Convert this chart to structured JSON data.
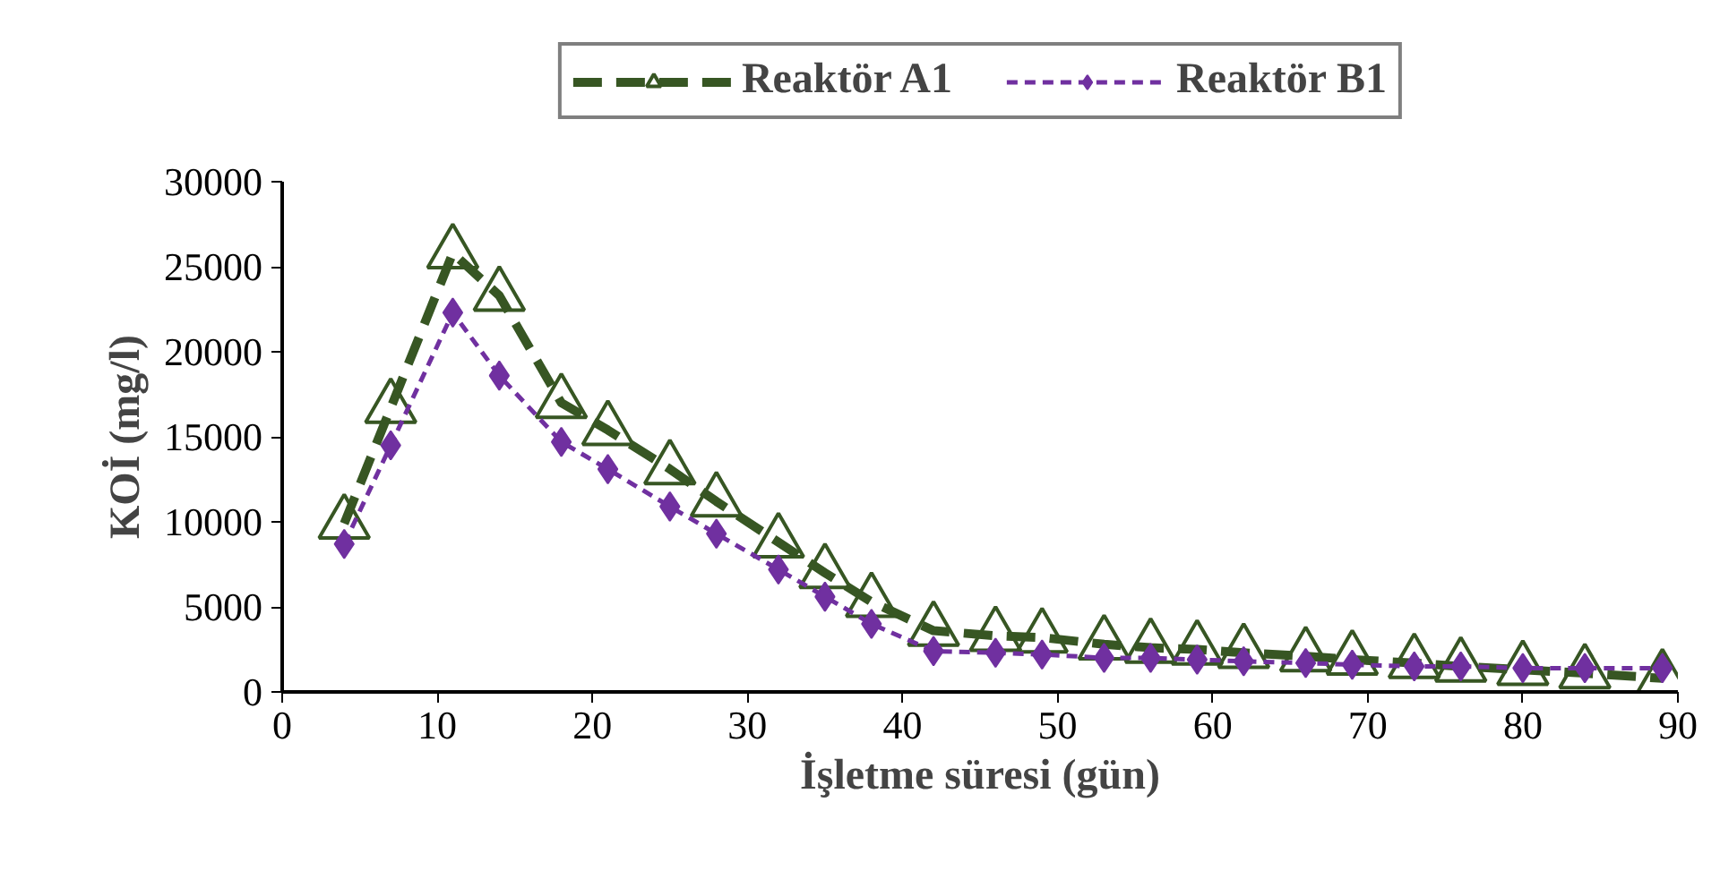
{
  "chart_data": {
    "type": "line",
    "xlabel": "İşletme süresi (gün)",
    "ylabel": "KOİ (mg/l)",
    "xlim": [
      0,
      90
    ],
    "xticks": [
      0,
      10,
      20,
      30,
      40,
      50,
      60,
      70,
      80,
      90
    ],
    "ylim": [
      0,
      30000
    ],
    "yticks": [
      0,
      5000,
      10000,
      15000,
      20000,
      25000,
      30000
    ],
    "grid": false,
    "legend": "top",
    "series": [
      {
        "name": "Reaktör A1",
        "color": "#375623",
        "marker": "triangle",
        "line_style": "dashed",
        "x": [
          4,
          7,
          11,
          14,
          18,
          21,
          25,
          28,
          32,
          35,
          38,
          42,
          46,
          49,
          53,
          56,
          59,
          62,
          66,
          69,
          73,
          76,
          80,
          84,
          89
        ],
        "values": [
          9900,
          16700,
          25800,
          23300,
          17000,
          15400,
          13100,
          11200,
          8800,
          7000,
          5300,
          3600,
          3300,
          3200,
          2800,
          2600,
          2500,
          2300,
          2100,
          1900,
          1700,
          1500,
          1300,
          1100,
          800
        ]
      },
      {
        "name": "Reaktör B1",
        "color": "#7030a0",
        "marker": "diamond",
        "line_style": "dotted",
        "x": [
          4,
          7,
          11,
          14,
          18,
          21,
          25,
          28,
          32,
          35,
          38,
          42,
          46,
          49,
          53,
          56,
          59,
          62,
          66,
          69,
          73,
          76,
          80,
          84,
          89
        ],
        "values": [
          8700,
          14500,
          22300,
          18600,
          14700,
          13100,
          10900,
          9300,
          7200,
          5600,
          4000,
          2400,
          2300,
          2200,
          2000,
          2000,
          1900,
          1800,
          1700,
          1600,
          1500,
          1500,
          1400,
          1400,
          1400
        ]
      }
    ]
  }
}
